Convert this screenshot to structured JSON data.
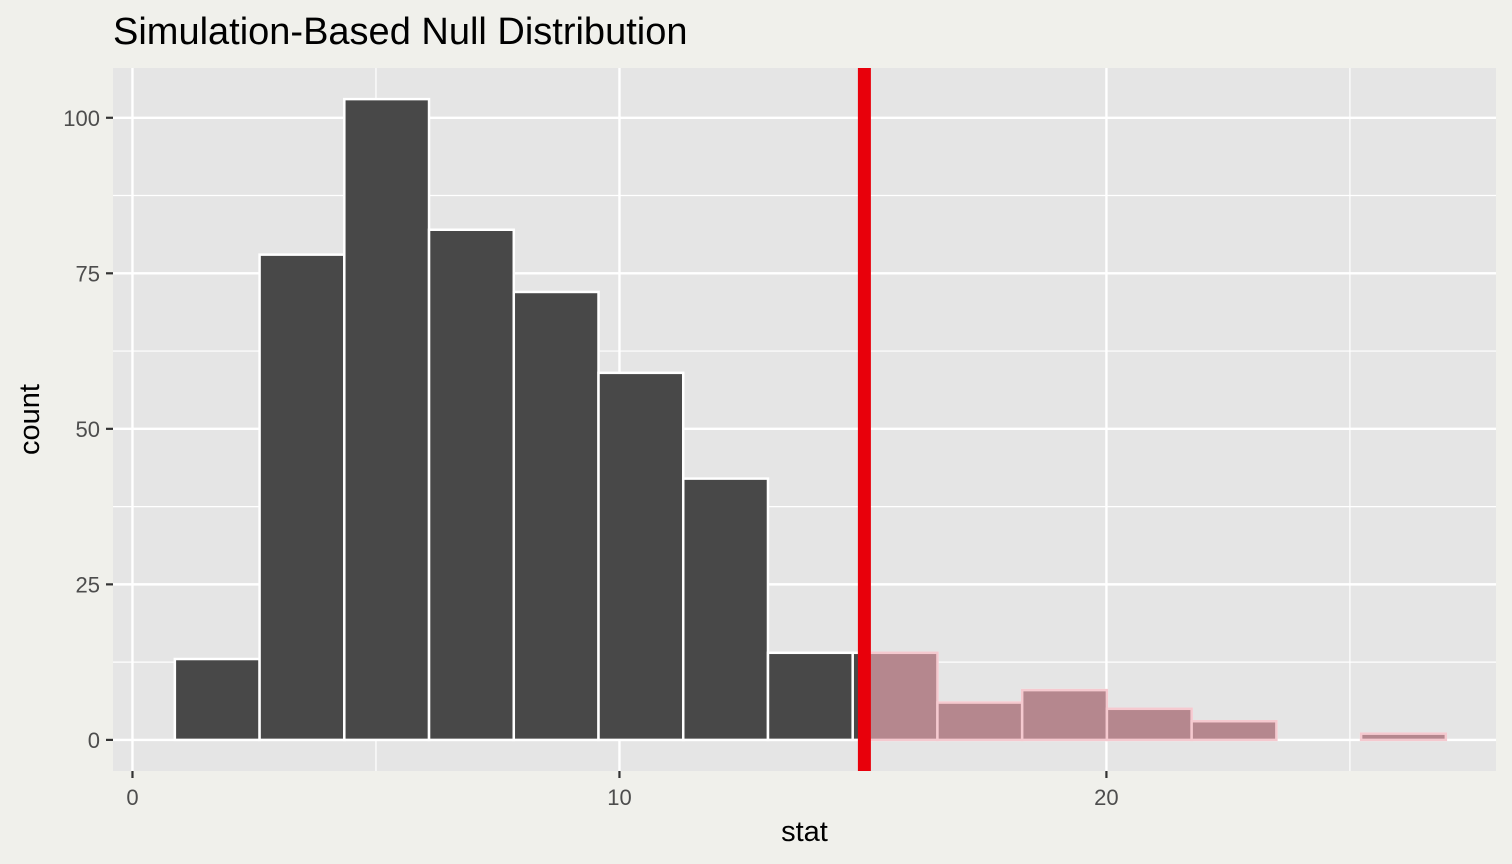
{
  "chart_data": {
    "type": "bar",
    "subtype": "histogram",
    "title": "Simulation-Based Null Distribution",
    "xlabel": "stat",
    "ylabel": "count",
    "xlim": [
      -0.4,
      28.0
    ],
    "ylim": [
      -5,
      108
    ],
    "x_ticks": [
      0,
      10,
      20
    ],
    "x_tick_labels": [
      "0",
      "10",
      "20"
    ],
    "y_ticks": [
      0,
      25,
      50,
      75,
      100
    ],
    "y_tick_labels": [
      "0",
      "25",
      "50",
      "75",
      "100"
    ],
    "bins": [
      {
        "x0": 0.87,
        "x1": 2.61,
        "count": 13
      },
      {
        "x0": 2.61,
        "x1": 4.35,
        "count": 78
      },
      {
        "x0": 4.35,
        "x1": 6.09,
        "count": 103
      },
      {
        "x0": 6.09,
        "x1": 7.83,
        "count": 82
      },
      {
        "x0": 7.83,
        "x1": 9.57,
        "count": 72
      },
      {
        "x0": 9.57,
        "x1": 11.31,
        "count": 59
      },
      {
        "x0": 11.31,
        "x1": 13.05,
        "count": 42
      },
      {
        "x0": 13.05,
        "x1": 14.79,
        "count": 14
      },
      {
        "x0": 14.79,
        "x1": 16.53,
        "count": 14
      },
      {
        "x0": 16.53,
        "x1": 18.27,
        "count": 6
      },
      {
        "x0": 18.27,
        "x1": 20.01,
        "count": 8
      },
      {
        "x0": 20.01,
        "x1": 21.75,
        "count": 5
      },
      {
        "x0": 21.75,
        "x1": 23.49,
        "count": 3
      },
      {
        "x0": 23.49,
        "x1": 25.23,
        "count": 0
      },
      {
        "x0": 25.23,
        "x1": 26.97,
        "count": 1
      }
    ],
    "observed_stat": 15.03,
    "shade_direction": "greater",
    "colors": {
      "bar_fill": "#484848",
      "shade_fill": "#b5878e",
      "bar_outline": "#ffffff",
      "shade_outline": "#f5c9cf",
      "observed_line": "#e8000b",
      "panel_background": "#e5e5e5",
      "grid": "#ffffff",
      "page_background": "#f0f0eb"
    }
  }
}
